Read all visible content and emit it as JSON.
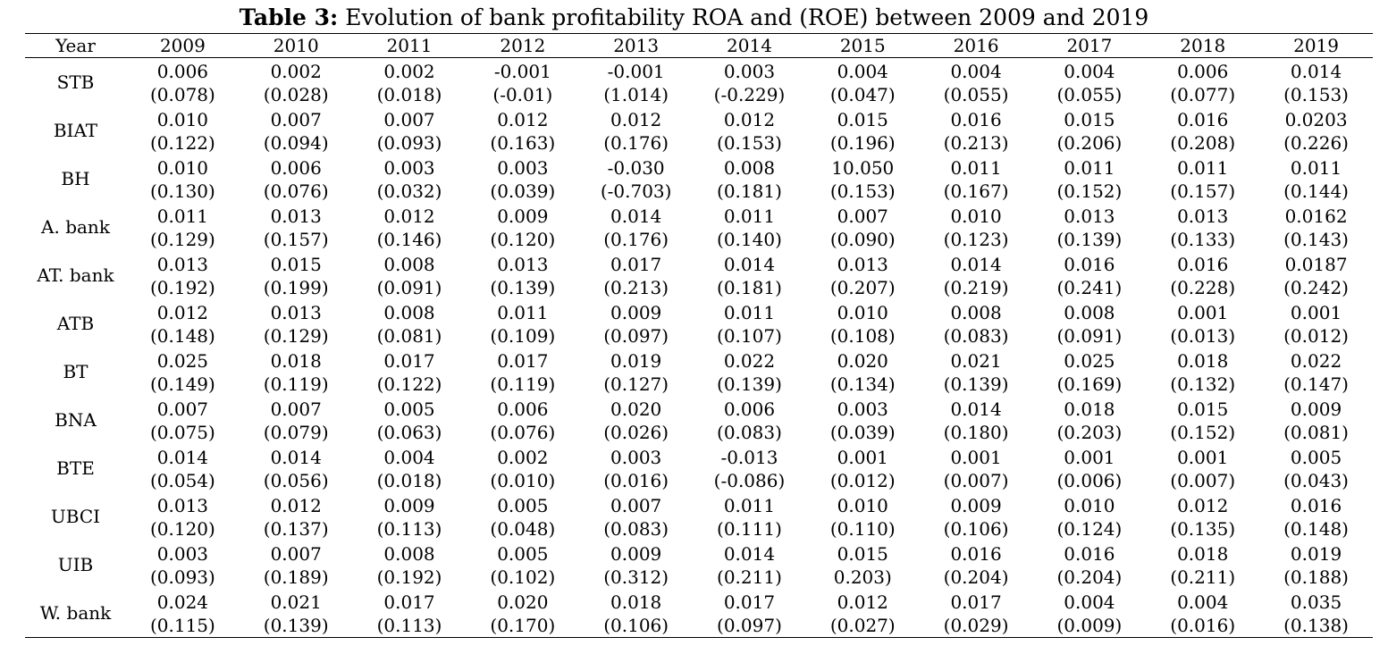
{
  "caption": {
    "label": "Table 3:",
    "text": "Evolution of bank profitability ROA and (ROE) between 2009 and 2019"
  },
  "header": [
    "Year",
    "2009",
    "2010",
    "2011",
    "2012",
    "2013",
    "2014",
    "2015",
    "2016",
    "2017",
    "2018",
    "2019"
  ],
  "rows": [
    {
      "name": "STB",
      "roa": [
        "0.006",
        "0.002",
        "0.002",
        "-0.001",
        "-0.001",
        "0.003",
        "0.004",
        "0.004",
        "0.004",
        "0.006",
        "0.014"
      ],
      "roe": [
        "(0.078)",
        "(0.028)",
        "(0.018)",
        "(-0.01)",
        "(1.014)",
        "(-0.229)",
        "(0.047)",
        "(0.055)",
        "(0.055)",
        "(0.077)",
        "(0.153)"
      ]
    },
    {
      "name": "BIAT",
      "roa": [
        "0.010",
        "0.007",
        "0.007",
        "0.012",
        "0.012",
        "0.012",
        "0.015",
        "0.016",
        "0.015",
        "0.016",
        "0.0203"
      ],
      "roe": [
        "(0.122)",
        "(0.094)",
        "(0.093)",
        "(0.163)",
        "(0.176)",
        "(0.153)",
        "(0.196)",
        "(0.213)",
        "(0.206)",
        "(0.208)",
        "(0.226)"
      ]
    },
    {
      "name": "BH",
      "roa": [
        "0.010",
        "0.006",
        "0.003",
        "0.003",
        "-0.030",
        "0.008",
        "10.050",
        "0.011",
        "0.011",
        "0.011",
        "0.011"
      ],
      "roe": [
        "(0.130)",
        "(0.076)",
        "(0.032)",
        "(0.039)",
        "(-0.703)",
        "(0.181)",
        "(0.153)",
        "(0.167)",
        "(0.152)",
        "(0.157)",
        "(0.144)"
      ]
    },
    {
      "name": "A. bank",
      "roa": [
        "0.011",
        "0.013",
        "0.012",
        "0.009",
        "0.014",
        "0.011",
        "0.007",
        "0.010",
        "0.013",
        "0.013",
        "0.0162"
      ],
      "roe": [
        "(0.129)",
        "(0.157)",
        "(0.146)",
        "(0.120)",
        "(0.176)",
        "(0.140)",
        "(0.090)",
        "(0.123)",
        "(0.139)",
        "(0.133)",
        "(0.143)"
      ]
    },
    {
      "name": "AT. bank",
      "roa": [
        "0.013",
        "0.015",
        "0.008",
        "0.013",
        "0.017",
        "0.014",
        "0.013",
        "0.014",
        "0.016",
        "0.016",
        "0.0187"
      ],
      "roe": [
        "(0.192)",
        "(0.199)",
        "(0.091)",
        "(0.139)",
        "(0.213)",
        "(0.181)",
        "(0.207)",
        "(0.219)",
        "(0.241)",
        "(0.228)",
        "(0.242)"
      ]
    },
    {
      "name": "ATB",
      "roa": [
        "0.012",
        "0.013",
        "0.008",
        "0.011",
        "0.009",
        "0.011",
        "0.010",
        "0.008",
        "0.008",
        "0.001",
        "0.001"
      ],
      "roe": [
        "(0.148)",
        "(0.129)",
        "(0.081)",
        "(0.109)",
        "(0.097)",
        "(0.107)",
        "(0.108)",
        "(0.083)",
        "(0.091)",
        "(0.013)",
        "(0.012)"
      ]
    },
    {
      "name": "BT",
      "roa": [
        "0.025",
        "0.018",
        "0.017",
        "0.017",
        "0.019",
        "0.022",
        "0.020",
        "0.021",
        "0.025",
        "0.018",
        "0.022"
      ],
      "roe": [
        "(0.149)",
        "(0.119)",
        "(0.122)",
        "(0.119)",
        "(0.127)",
        "(0.139)",
        "(0.134)",
        "(0.139)",
        "(0.169)",
        "(0.132)",
        "(0.147)"
      ]
    },
    {
      "name": "BNA",
      "roa": [
        "0.007",
        "0.007",
        "0.005",
        "0.006",
        "0.020",
        "0.006",
        "0.003",
        "0.014",
        "0.018",
        "0.015",
        "0.009"
      ],
      "roe": [
        "(0.075)",
        "(0.079)",
        "(0.063)",
        "(0.076)",
        "(0.026)",
        "(0.083)",
        "(0.039)",
        "(0.180)",
        "(0.203)",
        "(0.152)",
        "(0.081)"
      ]
    },
    {
      "name": "BTE",
      "roa": [
        "0.014",
        "0.014",
        "0.004",
        "0.002",
        "0.003",
        "-0.013",
        "0.001",
        "0.001",
        "0.001",
        "0.001",
        "0.005"
      ],
      "roe": [
        "(0.054)",
        "(0.056)",
        "(0.018)",
        "(0.010)",
        "(0.016)",
        "(-0.086)",
        "(0.012)",
        "(0.007)",
        "(0.006)",
        "(0.007)",
        "(0.043)"
      ]
    },
    {
      "name": "UBCI",
      "roa": [
        "0.013",
        "0.012",
        "0.009",
        "0.005",
        "0.007",
        "0.011",
        "0.010",
        "0.009",
        "0.010",
        "0.012",
        "0.016"
      ],
      "roe": [
        "(0.120)",
        "(0.137)",
        "(0.113)",
        "(0.048)",
        "(0.083)",
        "(0.111)",
        "(0.110)",
        "(0.106)",
        "(0.124)",
        "(0.135)",
        "(0.148)"
      ]
    },
    {
      "name": "UIB",
      "roa": [
        "0.003",
        "0.007",
        "0.008",
        "0.005",
        "0.009",
        "0.014",
        "0.015",
        "0.016",
        "0.016",
        "0.018",
        "0.019"
      ],
      "roe": [
        "(0.093)",
        "(0.189)",
        "(0.192)",
        "(0.102)",
        "(0.312)",
        "(0.211)",
        "0.203)",
        "(0.204)",
        "(0.204)",
        "(0.211)",
        "(0.188)"
      ]
    },
    {
      "name": "W. bank",
      "roa": [
        "0.024",
        "0.021",
        "0.017",
        "0.020",
        "0.018",
        "0.017",
        "0.012",
        "0.017",
        "0.004",
        "0.004",
        "0.035"
      ],
      "roe": [
        "(0.115)",
        "(0.139)",
        "(0.113)",
        "(0.170)",
        "(0.106)",
        "(0.097)",
        "(0.027)",
        "(0.029)",
        "(0.009)",
        "(0.016)",
        "(0.138)"
      ]
    }
  ]
}
